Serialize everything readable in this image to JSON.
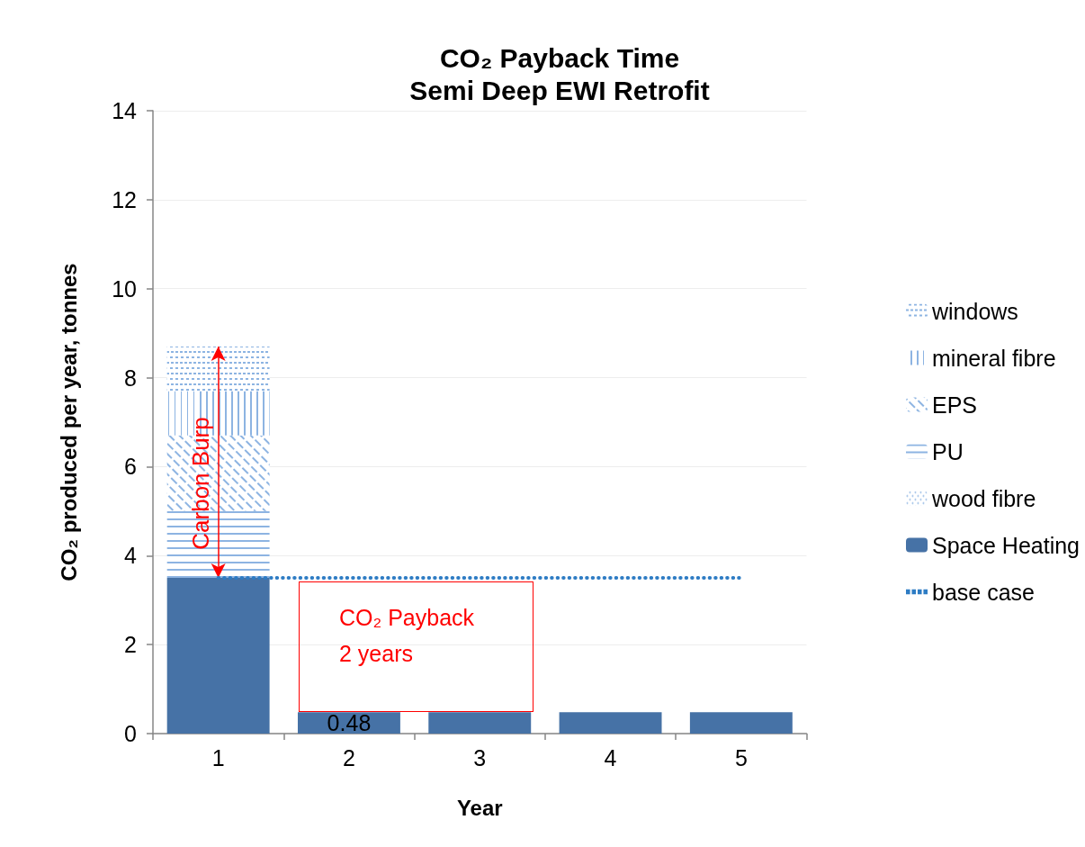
{
  "chart_data": {
    "type": "bar",
    "title": "CO₂ Payback Time",
    "subtitle": "Semi Deep EWI Retrofit",
    "xlabel": "Year",
    "ylabel": "CO₂ produced per year, tonnes",
    "categories": [
      "1",
      "2",
      "3",
      "4",
      "5"
    ],
    "stacked": true,
    "series": [
      {
        "name": "Space Heating",
        "color": "#4672a6",
        "values": [
          3.5,
          0.48,
          0.48,
          0.48,
          0.48
        ],
        "value_labels": [
          null,
          "0.48",
          null,
          null,
          null
        ]
      },
      {
        "name": "wood fibre",
        "color": "#8db4e2",
        "values": [
          null,
          null,
          null,
          null,
          null
        ]
      },
      {
        "name": "PU",
        "color": "#8db4e2",
        "values": [
          1.5,
          null,
          null,
          null,
          null
        ]
      },
      {
        "name": "EPS",
        "color": "#8db4e2",
        "values": [
          1.7,
          null,
          null,
          null,
          null
        ]
      },
      {
        "name": "mineral fibre",
        "color": "#8db4e2",
        "values": [
          1.0,
          null,
          null,
          null,
          null
        ]
      },
      {
        "name": "windows",
        "color": "#8db4e2",
        "values": [
          1.0,
          null,
          null,
          null,
          null
        ]
      },
      {
        "name": "base case",
        "type": "line",
        "color": "#2e7cc4",
        "values": [
          3.5,
          3.5,
          3.5,
          3.5,
          3.5
        ]
      }
    ],
    "ylim": [
      0,
      14
    ],
    "yticks": [
      0,
      2,
      4,
      6,
      8,
      10,
      12,
      14
    ],
    "grid": "y",
    "legend": "right",
    "marker": "none",
    "line_style": "dotted",
    "annotations": [
      "Carbon Burp",
      "CO₂ Payback 2 years"
    ]
  }
}
